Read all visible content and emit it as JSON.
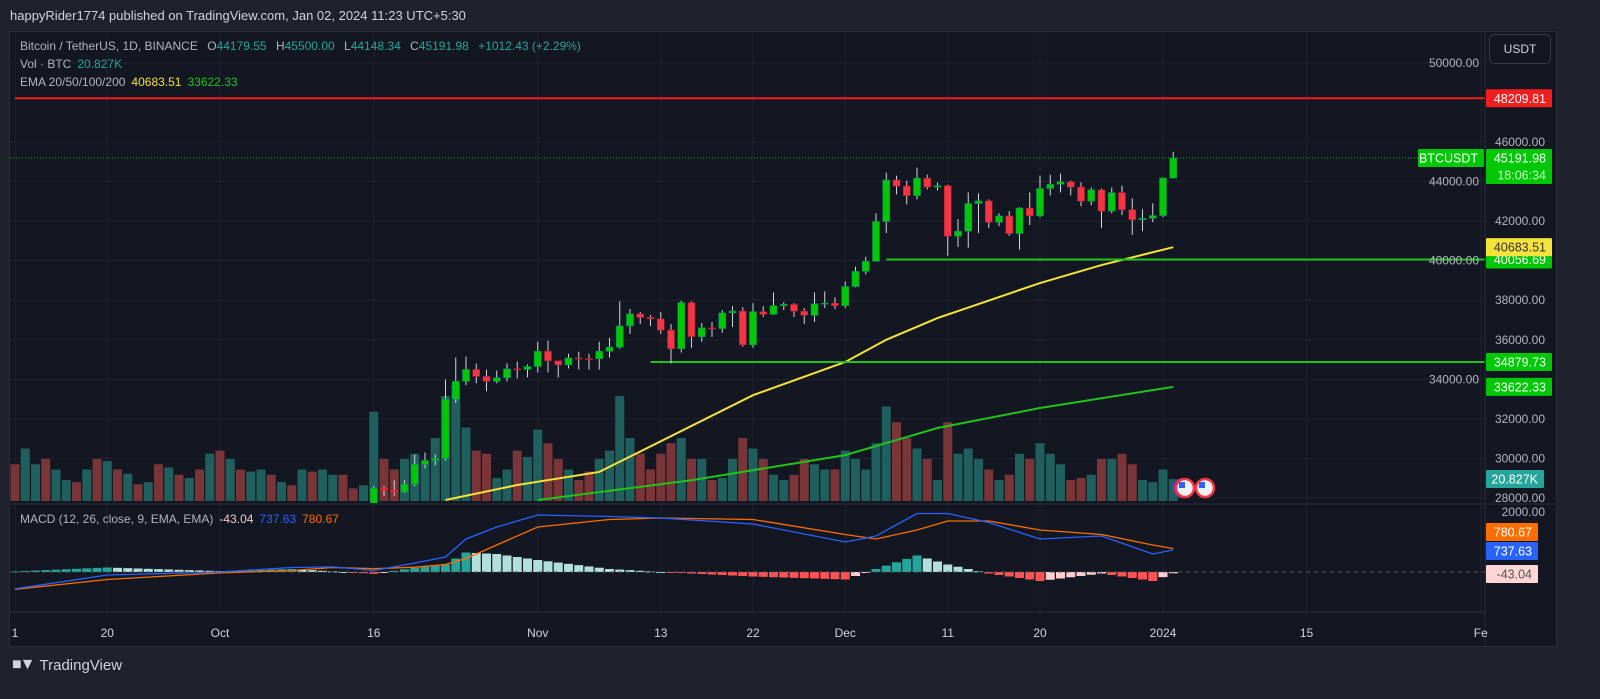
{
  "header": {
    "published": "happyRider1774 published on TradingView.com, Jan 02, 2024 11:23 UTC+5:30"
  },
  "legend": {
    "symbol": "Bitcoin / TetherUS, 1D, BINANCE",
    "open_label": "O",
    "open": "44179.55",
    "high_label": "H",
    "high": "45500.00",
    "low_label": "L",
    "low": "44148.34",
    "close_label": "C",
    "close": "45191.98",
    "change": "+1012.43 (+2.29%)",
    "vol_label": "Vol · BTC",
    "vol": "20.827K",
    "ema_label": "EMA 20/50/100/200",
    "ema1": "40683.51",
    "ema2": "33622.33",
    "macd_label": "MACD (12, 26, close, 9, EMA, EMA)",
    "macd_hist": "-43.04",
    "macd": "737.63",
    "macd_signal": "780.67"
  },
  "currency_button": "USDT",
  "footer": {
    "brand": "TradingView"
  },
  "colors": {
    "up": "#00c805",
    "down": "#f23645",
    "vol_up": "#1f5f5d",
    "vol_down": "#7a3538",
    "ema_fast": "#f5e23b",
    "ema_slow": "#22c21c",
    "resistance": "#f21e1e",
    "support": "#22c21c",
    "macd": "#2962ff",
    "signal": "#ff6d00"
  },
  "chart_data": {
    "type": "candlestick",
    "symbol": "BTCUSDT",
    "price_axis": {
      "ticks": [
        "50000.00",
        "46000.00",
        "44000.00",
        "42000.00",
        "40000.00",
        "38000.00",
        "36000.00",
        "34000.00",
        "32000.00",
        "30000.00",
        "28000.00"
      ],
      "range": [
        27900,
        51000
      ]
    },
    "time_axis": {
      "start": "2023-09-11",
      "ticks": [
        {
          "date": "2023-09-11",
          "label": "1"
        },
        {
          "date": "2023-09-20",
          "label": "20"
        },
        {
          "date": "2023-10-01",
          "label": "Oct"
        },
        {
          "date": "2023-10-16",
          "label": "16"
        },
        {
          "date": "2023-11-01",
          "label": "Nov"
        },
        {
          "date": "2023-11-13",
          "label": "13"
        },
        {
          "date": "2023-11-22",
          "label": "22"
        },
        {
          "date": "2023-12-01",
          "label": "Dec"
        },
        {
          "date": "2023-12-11",
          "label": "11"
        },
        {
          "date": "2023-12-20",
          "label": "20"
        },
        {
          "date": "2024-01-01",
          "label": "2024"
        },
        {
          "date": "2024-01-15",
          "label": "15"
        },
        {
          "date": "2024-02-01",
          "label": "Fe"
        }
      ]
    },
    "candles_start": "2023-10-16",
    "ohlc": [
      [
        27150,
        28600,
        26980,
        28500
      ],
      [
        28500,
        28600,
        28100,
        28400
      ],
      [
        28400,
        28900,
        28120,
        28300
      ],
      [
        28300,
        28900,
        28250,
        28700
      ],
      [
        28700,
        30200,
        28600,
        29700
      ],
      [
        29700,
        30300,
        29500,
        29900
      ],
      [
        29900,
        30200,
        29650,
        30000
      ],
      [
        30000,
        34000,
        29900,
        33000
      ],
      [
        33000,
        35100,
        32800,
        33900
      ],
      [
        33900,
        35150,
        33700,
        34500
      ],
      [
        34500,
        34800,
        33800,
        34150
      ],
      [
        34150,
        34500,
        33400,
        33900
      ],
      [
        33900,
        34450,
        33800,
        34080
      ],
      [
        34080,
        34800,
        33900,
        34530
      ],
      [
        34530,
        34900,
        34050,
        34500
      ],
      [
        34500,
        34750,
        34100,
        34650
      ],
      [
        34650,
        35900,
        34350,
        35420
      ],
      [
        35420,
        35950,
        34350,
        34940
      ],
      [
        34940,
        34950,
        34100,
        34730
      ],
      [
        34730,
        35300,
        34550,
        35080
      ],
      [
        35080,
        35400,
        34500,
        35050
      ],
      [
        35050,
        35300,
        34500,
        35040
      ],
      [
        35040,
        35900,
        34500,
        35420
      ],
      [
        35420,
        36100,
        35100,
        35630
      ],
      [
        35630,
        37950,
        35550,
        36700
      ],
      [
        36700,
        37550,
        36300,
        37310
      ],
      [
        37310,
        37400,
        36800,
        37130
      ],
      [
        37130,
        37250,
        36700,
        37060
      ],
      [
        37060,
        37400,
        36300,
        36490
      ],
      [
        36490,
        36800,
        34800,
        35550
      ],
      [
        35550,
        37980,
        35350,
        37880
      ],
      [
        37880,
        37950,
        35600,
        36160
      ],
      [
        36160,
        36850,
        35900,
        36600
      ],
      [
        36600,
        36900,
        36150,
        36570
      ],
      [
        36570,
        37500,
        36350,
        37360
      ],
      [
        37360,
        37700,
        36650,
        37450
      ],
      [
        37450,
        37650,
        35650,
        35750
      ],
      [
        35750,
        37850,
        35600,
        37420
      ],
      [
        37420,
        37700,
        37150,
        37290
      ],
      [
        37290,
        38400,
        37250,
        37720
      ],
      [
        37720,
        37900,
        37500,
        37790
      ],
      [
        37790,
        37850,
        37150,
        37450
      ],
      [
        37450,
        37600,
        36800,
        37240
      ],
      [
        37240,
        38400,
        36900,
        37820
      ],
      [
        37820,
        38450,
        37600,
        37850
      ],
      [
        37850,
        38150,
        37550,
        37720
      ],
      [
        37720,
        38950,
        37600,
        38690
      ],
      [
        38690,
        39700,
        38650,
        39460
      ],
      [
        39460,
        40200,
        39300,
        39970
      ],
      [
        39970,
        42400,
        39950,
        41980
      ],
      [
        41980,
        44450,
        41400,
        44080
      ],
      [
        44080,
        44300,
        43350,
        43770
      ],
      [
        43770,
        44050,
        42850,
        43290
      ],
      [
        43290,
        44700,
        43100,
        44170
      ],
      [
        44170,
        44350,
        43600,
        43720
      ],
      [
        43720,
        43950,
        43550,
        43790
      ],
      [
        43790,
        43850,
        40250,
        41240
      ],
      [
        41240,
        42100,
        40700,
        41490
      ],
      [
        41490,
        43450,
        40650,
        42890
      ],
      [
        42890,
        43400,
        41400,
        43020
      ],
      [
        43020,
        43100,
        41650,
        41940
      ],
      [
        41940,
        42400,
        41750,
        42260
      ],
      [
        42260,
        42500,
        41250,
        41370
      ],
      [
        41370,
        42700,
        40550,
        42660
      ],
      [
        42660,
        43450,
        41800,
        42270
      ],
      [
        42270,
        44300,
        42200,
        43650
      ],
      [
        43650,
        44350,
        43300,
        43860
      ],
      [
        43860,
        44400,
        43450,
        43990
      ],
      [
        43990,
        44050,
        43300,
        43720
      ],
      [
        43720,
        43950,
        42750,
        43010
      ],
      [
        43010,
        43700,
        42800,
        43580
      ],
      [
        43580,
        43650,
        41650,
        42510
      ],
      [
        42510,
        43700,
        42400,
        43440
      ],
      [
        43440,
        43800,
        42300,
        42580
      ],
      [
        42580,
        43150,
        41300,
        42070
      ],
      [
        42070,
        42600,
        41500,
        42140
      ],
      [
        42140,
        42900,
        41950,
        42280
      ],
      [
        42280,
        44200,
        42200,
        44180
      ],
      [
        44179.55,
        45500,
        44148.34,
        45191.98
      ]
    ],
    "volume_k": [
      [
        35,
        0
      ],
      [
        50,
        1
      ],
      [
        35,
        1
      ],
      [
        40,
        0
      ],
      [
        30,
        1
      ],
      [
        20,
        1
      ],
      [
        18,
        0
      ],
      [
        30,
        1
      ],
      [
        40,
        0
      ],
      [
        38,
        1
      ],
      [
        30,
        0
      ],
      [
        26,
        1
      ],
      [
        16,
        0
      ],
      [
        18,
        1
      ],
      [
        35,
        0
      ],
      [
        32,
        1
      ],
      [
        25,
        0
      ],
      [
        22,
        1
      ],
      [
        30,
        0
      ],
      [
        45,
        1
      ],
      [
        48,
        0
      ],
      [
        40,
        1
      ],
      [
        30,
        0
      ],
      [
        28,
        1
      ],
      [
        30,
        1
      ],
      [
        25,
        0
      ],
      [
        18,
        1
      ],
      [
        15,
        0
      ],
      [
        30,
        1
      ],
      [
        28,
        0
      ],
      [
        30,
        1
      ],
      [
        25,
        1
      ],
      [
        25,
        0
      ],
      [
        12,
        0
      ],
      [
        15,
        1
      ],
      [
        85,
        1
      ],
      [
        40,
        0
      ],
      [
        30,
        0
      ],
      [
        40,
        1
      ],
      [
        45,
        1
      ],
      [
        35,
        1
      ],
      [
        60,
        1
      ],
      [
        100,
        1
      ],
      [
        110,
        1
      ],
      [
        70,
        1
      ],
      [
        48,
        0
      ],
      [
        45,
        0
      ],
      [
        22,
        1
      ],
      [
        30,
        1
      ],
      [
        48,
        0
      ],
      [
        42,
        1
      ],
      [
        68,
        1
      ],
      [
        55,
        0
      ],
      [
        40,
        0
      ],
      [
        30,
        1
      ],
      [
        20,
        0
      ],
      [
        28,
        0
      ],
      [
        40,
        1
      ],
      [
        48,
        1
      ],
      [
        100,
        1
      ],
      [
        60,
        1
      ],
      [
        45,
        0
      ],
      [
        30,
        0
      ],
      [
        45,
        0
      ],
      [
        55,
        0
      ],
      [
        60,
        1
      ],
      [
        40,
        0
      ],
      [
        40,
        1
      ],
      [
        20,
        0
      ],
      [
        22,
        1
      ],
      [
        40,
        1
      ],
      [
        60,
        0
      ],
      [
        50,
        1
      ],
      [
        40,
        0
      ],
      [
        25,
        1
      ],
      [
        20,
        1
      ],
      [
        25,
        0
      ],
      [
        40,
        0
      ],
      [
        35,
        1
      ],
      [
        30,
        1
      ],
      [
        30,
        0
      ],
      [
        48,
        1
      ],
      [
        40,
        1
      ],
      [
        30,
        1
      ],
      [
        55,
        1
      ],
      [
        90,
        1
      ],
      [
        75,
        0
      ],
      [
        60,
        0
      ],
      [
        50,
        1
      ],
      [
        40,
        0
      ],
      [
        20,
        1
      ],
      [
        75,
        0
      ],
      [
        45,
        1
      ],
      [
        50,
        1
      ],
      [
        40,
        1
      ],
      [
        30,
        0
      ],
      [
        20,
        1
      ],
      [
        25,
        0
      ],
      [
        45,
        1
      ],
      [
        40,
        0
      ],
      [
        55,
        1
      ],
      [
        45,
        1
      ],
      [
        35,
        1
      ],
      [
        20,
        0
      ],
      [
        22,
        0
      ],
      [
        25,
        1
      ],
      [
        40,
        0
      ],
      [
        40,
        1
      ],
      [
        45,
        0
      ],
      [
        35,
        0
      ],
      [
        20,
        1
      ],
      [
        18,
        1
      ],
      [
        30,
        1
      ],
      [
        20.827,
        1
      ]
    ],
    "ema_fast": [
      [
        "2023-10-23",
        27900
      ],
      [
        "2023-10-30",
        28660
      ],
      [
        "2023-11-07",
        29320
      ],
      [
        "2023-11-22",
        33200
      ],
      [
        "2023-12-01",
        34880
      ],
      [
        "2023-12-05",
        36000
      ],
      [
        "2023-12-10",
        37100
      ],
      [
        "2023-12-20",
        38870
      ],
      [
        "2023-12-26",
        39780
      ],
      [
        "2024-01-02",
        40683.51
      ]
    ],
    "ema_slow": [
      [
        "2023-11-01",
        27900
      ],
      [
        "2023-11-16",
        28900
      ],
      [
        "2023-12-01",
        30170
      ],
      [
        "2023-12-10",
        31540
      ],
      [
        "2023-12-20",
        32550
      ],
      [
        "2024-01-02",
        33622.33
      ]
    ],
    "levels": [
      {
        "value": 48209.81,
        "label": "48209.81",
        "kind": "resistance",
        "from": "2023-09-11"
      },
      {
        "value": 40056.69,
        "label": "40056.69",
        "kind": "support",
        "from": "2023-12-05"
      },
      {
        "value": 34879.73,
        "label": "34879.73",
        "kind": "support",
        "from": "2023-11-12"
      }
    ],
    "last_price": {
      "label": "BTCUSDT",
      "value": "45191.98",
      "countdown": "18:06:34"
    },
    "axis_labels": {
      "ema_fast": "40683.51",
      "ema_slow": "33622.33",
      "volume": "20.827K"
    },
    "macd": {
      "axis_tick": "2000.00",
      "labels": {
        "signal": "780.67",
        "macd": "737.63",
        "hist": "-43.04"
      },
      "points": [
        [
          "2023-09-11",
          -560,
          -580
        ],
        [
          "2023-09-20",
          -100,
          -250
        ],
        [
          "2023-10-01",
          0,
          -30
        ],
        [
          "2023-10-08",
          150,
          50
        ],
        [
          "2023-10-12",
          170,
          150
        ],
        [
          "2023-10-16",
          50,
          110
        ],
        [
          "2023-10-20",
          300,
          160
        ],
        [
          "2023-10-23",
          500,
          250
        ],
        [
          "2023-10-25",
          1100,
          450
        ],
        [
          "2023-10-28",
          1500,
          900
        ],
        [
          "2023-11-01",
          1900,
          1500
        ],
        [
          "2023-11-08",
          1850,
          1750
        ],
        [
          "2023-11-13",
          1800,
          1800
        ],
        [
          "2023-11-22",
          1600,
          1750
        ],
        [
          "2023-12-01",
          1000,
          1250
        ],
        [
          "2023-12-04",
          1200,
          1100
        ],
        [
          "2023-12-08",
          1950,
          1400
        ],
        [
          "2023-12-11",
          1950,
          1700
        ],
        [
          "2023-12-15",
          1650,
          1700
        ],
        [
          "2023-12-20",
          1100,
          1400
        ],
        [
          "2023-12-26",
          1200,
          1250
        ],
        [
          "2023-12-31",
          600,
          900
        ],
        [
          "2024-01-02",
          737.63,
          780.67
        ]
      ]
    }
  }
}
